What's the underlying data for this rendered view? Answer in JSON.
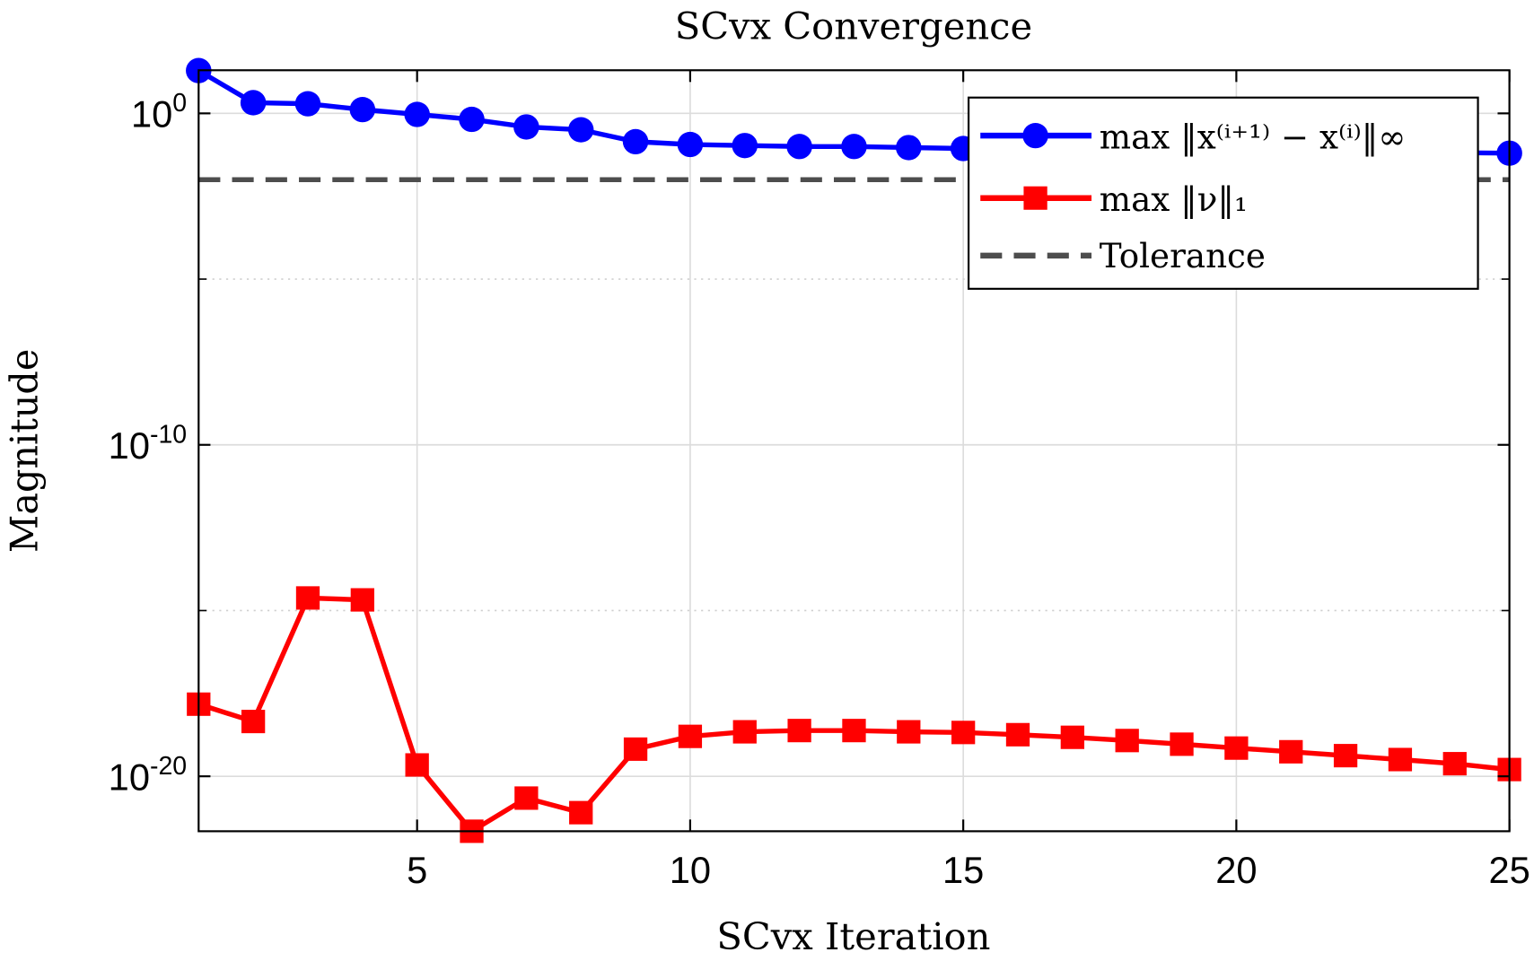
{
  "chart_data": {
    "type": "line",
    "title": "SCvx Convergence",
    "xlabel": "SCvx Iteration",
    "ylabel": "Magnitude",
    "xlim": [
      1,
      25
    ],
    "ylim": [
      2.2e-22,
      20
    ],
    "yscale": "log",
    "grid": true,
    "legend_position": "top-right",
    "x_ticks": [
      "5",
      "10",
      "15",
      "20",
      "25"
    ],
    "x_tick_values": [
      5,
      10,
      15,
      20,
      25
    ],
    "y_ticks": [
      {
        "base": "10",
        "exp": "0",
        "value": 1
      },
      {
        "base": "10",
        "exp": "-10",
        "value": 1e-10
      },
      {
        "base": "10",
        "exp": "-20",
        "value": 1e-20
      }
    ],
    "x": [
      1,
      2,
      3,
      4,
      5,
      6,
      7,
      8,
      9,
      10,
      11,
      12,
      13,
      14,
      15,
      16,
      17,
      18,
      19,
      20,
      21,
      22,
      23,
      24,
      25
    ],
    "series": [
      {
        "name": "max ‖x⁽ⁱ⁺¹⁾ − x⁽ⁱ⁾‖∞",
        "color": "#0000ff",
        "marker": "circle",
        "values": [
          19.5,
          2.1,
          1.95,
          1.3,
          0.93,
          0.66,
          0.39,
          0.32,
          0.14,
          0.115,
          0.107,
          0.1,
          0.1,
          0.093,
          0.087,
          0.083,
          0.079,
          0.078,
          0.074,
          0.072,
          0.071,
          0.068,
          0.066,
          0.065,
          0.063
        ]
      },
      {
        "name": "max ‖ν‖₁",
        "color": "#ff0000",
        "marker": "square",
        "values": [
          1.5e-18,
          4.5e-19,
          2.4e-15,
          2.1e-15,
          2.2e-20,
          2.2e-22,
          2.2e-21,
          8e-22,
          6.6e-20,
          1.6e-19,
          2.2e-19,
          2.4e-19,
          2.4e-19,
          2.2e-19,
          2.1e-19,
          1.8e-19,
          1.5e-19,
          1.2e-19,
          9.3e-20,
          7.1e-20,
          5.5e-20,
          4.2e-20,
          3.2e-20,
          2.4e-20,
          1.6e-20
        ]
      },
      {
        "name": "Tolerance",
        "color": "#4d4d4d",
        "style": "dashed",
        "constant": 0.01
      }
    ]
  }
}
